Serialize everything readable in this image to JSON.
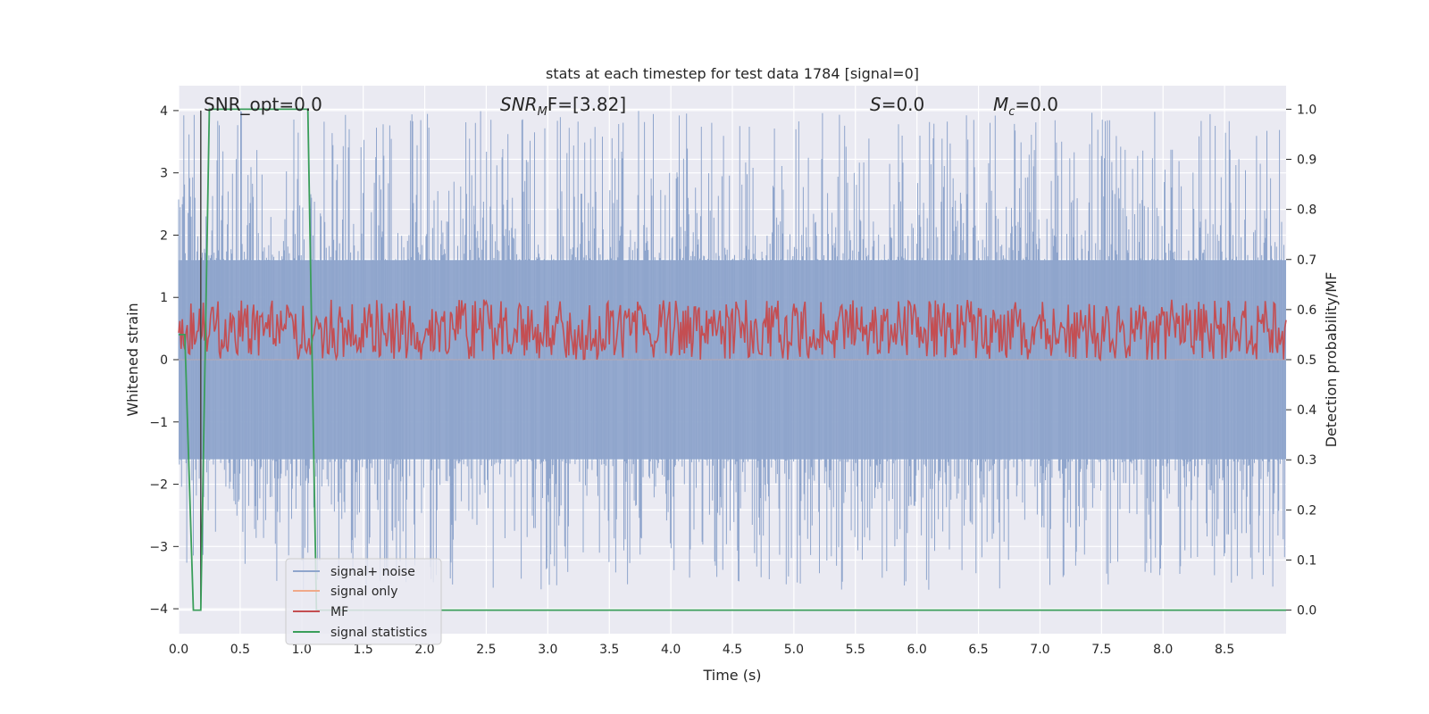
{
  "chart_data": {
    "type": "line",
    "title": "stats at each timestep for test data 1784 [signal=0]",
    "xlabel": "Time (s)",
    "ylabel": "Whitened strain",
    "y2label": "Detection probability/MF",
    "xlim": [
      0,
      9.0
    ],
    "ylim": [
      -4.4,
      4.4
    ],
    "y2lim": [
      -0.047,
      1.047
    ],
    "x_ticks": [
      "0.0",
      "0.5",
      "1.0",
      "1.5",
      "2.0",
      "2.5",
      "3.0",
      "3.5",
      "4.0",
      "4.5",
      "5.0",
      "5.5",
      "6.0",
      "6.5",
      "7.0",
      "7.5",
      "8.0",
      "8.5"
    ],
    "y_ticks": [
      "−4",
      "−3",
      "−2",
      "−1",
      "0",
      "1",
      "2",
      "3",
      "4"
    ],
    "y2_ticks": [
      "0.0",
      "0.1",
      "0.2",
      "0.3",
      "0.4",
      "0.5",
      "0.6",
      "0.7",
      "0.8",
      "0.9",
      "1.0"
    ],
    "grid": true,
    "legend_position": "lower-left",
    "annotations": {
      "snr_opt": "SNR_opt=0.0",
      "snr_mf_prefix": "SNR",
      "snr_mf_sub": "M",
      "snr_mf_suffix": "F=[3.82]",
      "s_prefix": "S",
      "s_suffix": "=0.0",
      "mc_prefix": "M",
      "mc_sub": "c",
      "mc_suffix": "=0.0"
    },
    "vertical_marker_x": 0.18,
    "series": [
      {
        "name": "signal+ noise",
        "color": "#8fa5cc",
        "axis": "left",
        "kind": "noise",
        "amplitude_envelope": 1.6,
        "peak_range": [
          -3.7,
          4.0
        ]
      },
      {
        "name": "signal only",
        "color": "#f0a98a",
        "axis": "left",
        "x": [
          0,
          9.0
        ],
        "values": [
          0,
          0
        ]
      },
      {
        "name": "MF",
        "color": "#c44e52",
        "axis": "right",
        "kind": "noise",
        "mean": 0.53,
        "range": [
          0.5,
          0.62
        ]
      },
      {
        "name": "signal statistics",
        "color": "#3a9e5a",
        "axis": "right",
        "x": [
          0.0,
          0.05,
          0.12,
          0.18,
          0.25,
          1.05,
          1.12,
          1.2,
          9.0
        ],
        "values": [
          0.55,
          0.55,
          0.0,
          0.0,
          1.0,
          1.0,
          0.0,
          0.0,
          0.0
        ]
      }
    ]
  }
}
